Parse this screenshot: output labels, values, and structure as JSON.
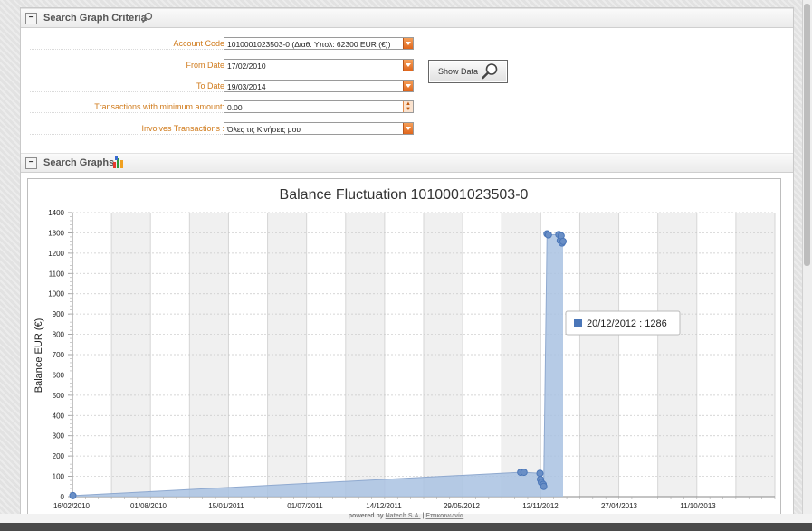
{
  "criteria": {
    "title": "Search Graph Criteria",
    "fields": [
      {
        "label": "Account Code",
        "value": "1010001023503-0 (Διαθ. Υπολ: 62300 EUR (€))"
      },
      {
        "label": "From Date",
        "value": "17/02/2010"
      },
      {
        "label": "To Date",
        "value": "19/03/2014"
      },
      {
        "label": "Transactions with minimum amount:",
        "value": "0.00"
      },
      {
        "label": "Involves Transactions :",
        "value": "Όλες τις Κινήσεις μου"
      }
    ],
    "show_button_label": "Show Data"
  },
  "graphs": {
    "title": "Search Graphs"
  },
  "tooltip": {
    "text": "20/12/2012 : 1286"
  },
  "footer": {
    "prefix": "powered by",
    "company": "Natech S.A.",
    "separator": "|",
    "contact": "Επικοινωνία"
  },
  "colors": {
    "accent": "#d07a1a",
    "series": "#4a76b8",
    "fill": "#a9c2e2"
  },
  "chart_data": {
    "type": "area",
    "title": "Balance Fluctuation 1010001023503-0",
    "ylabel": "Balance EUR (€)",
    "xlabel": "",
    "ylim": [
      0,
      1400
    ],
    "yticks": [
      0,
      100,
      200,
      300,
      400,
      500,
      600,
      700,
      800,
      900,
      1000,
      1100,
      1200,
      1300,
      1400
    ],
    "xticks": [
      "16/02/2010",
      "01/08/2010",
      "15/01/2011",
      "01/07/2011",
      "14/12/2011",
      "29/05/2012",
      "12/11/2012",
      "27/04/2013",
      "11/10/2013"
    ],
    "xrange": [
      "2010-02-16",
      "2014-03-19"
    ],
    "grid": true,
    "series": [
      {
        "points": [
          {
            "date": "2010-02-17",
            "value": 5
          },
          {
            "date": "2012-09-25",
            "value": 120
          },
          {
            "date": "2012-10-02",
            "value": 120
          },
          {
            "date": "2012-11-05",
            "value": 115
          },
          {
            "date": "2012-11-06",
            "value": 85
          },
          {
            "date": "2012-11-08",
            "value": 70
          },
          {
            "date": "2012-11-12",
            "value": 60
          },
          {
            "date": "2012-11-13",
            "value": 50
          },
          {
            "date": "2012-11-20",
            "value": 1295
          },
          {
            "date": "2012-11-23",
            "value": 1290
          },
          {
            "date": "2012-12-15",
            "value": 1292
          },
          {
            "date": "2012-12-18",
            "value": 1262
          },
          {
            "date": "2012-12-20",
            "value": 1286
          },
          {
            "date": "2012-12-22",
            "value": 1250
          },
          {
            "date": "2012-12-24",
            "value": 1258
          }
        ]
      }
    ]
  }
}
